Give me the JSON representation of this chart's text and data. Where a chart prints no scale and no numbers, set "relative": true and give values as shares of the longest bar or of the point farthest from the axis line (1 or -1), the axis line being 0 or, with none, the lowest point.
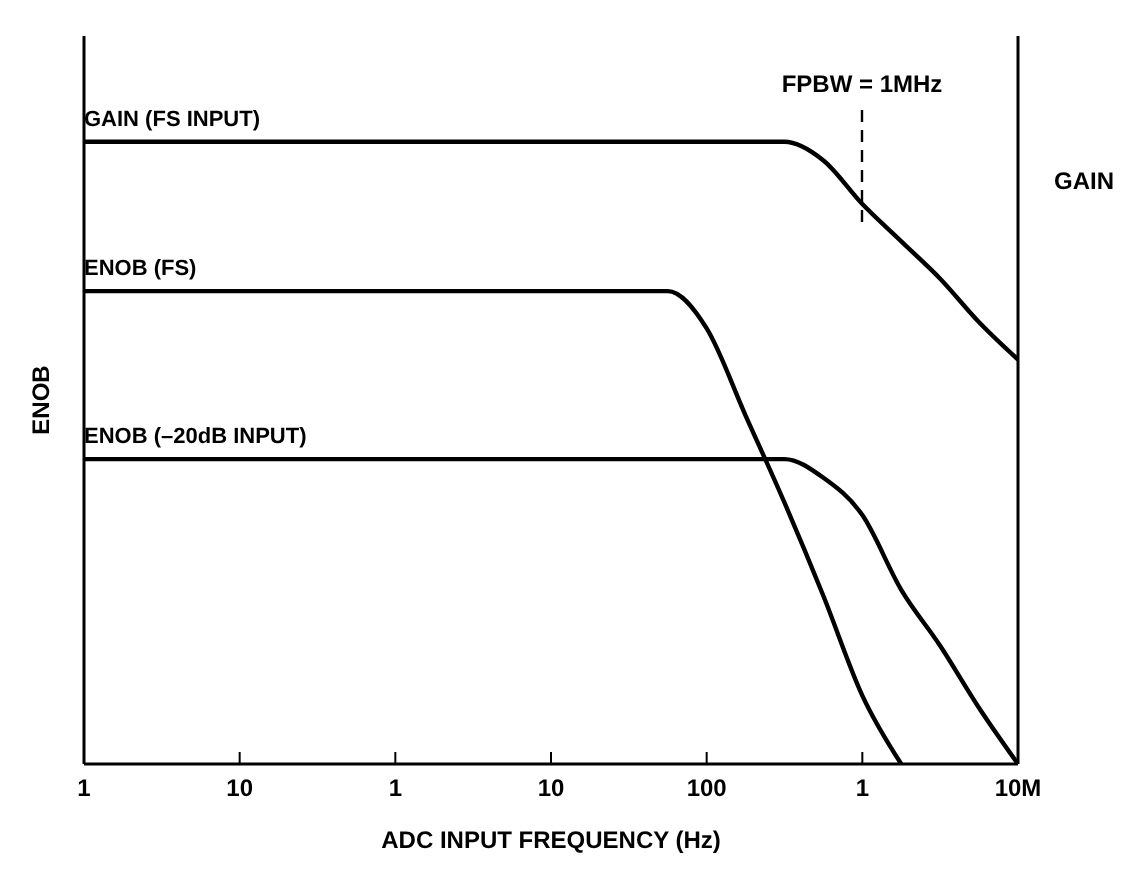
{
  "chart_data": {
    "type": "line",
    "relative": true,
    "xlabel": "ADC INPUT FREQUENCY (Hz)",
    "ylabel": "ENOB",
    "y2label": "GAIN",
    "categories": [
      "1",
      null,
      null,
      null,
      "10",
      null,
      null,
      null,
      "1",
      null,
      null,
      null,
      "10",
      null,
      null,
      null,
      "100",
      null,
      null,
      null,
      "1",
      null,
      null,
      null,
      "10M"
    ],
    "marker": "none",
    "line_style": "solid",
    "series": [
      {
        "name": "GAIN (FS INPUT)",
        "color": "#000000",
        "values": [
          1,
          1,
          1,
          1,
          1,
          1,
          1,
          1,
          1,
          1,
          1,
          1,
          1,
          1,
          1,
          1,
          1,
          1,
          1,
          0.97,
          0.9,
          0.84,
          0.78,
          0.71,
          0.65
        ]
      },
      {
        "name": "ENOB (FS)",
        "color": "#000000",
        "values": [
          0.76,
          0.76,
          0.76,
          0.76,
          0.76,
          0.76,
          0.76,
          0.76,
          0.76,
          0.76,
          0.76,
          0.76,
          0.76,
          0.76,
          0.76,
          0.76,
          0.7,
          0.56,
          0.42,
          0.27,
          0.11,
          0,
          null,
          null,
          null
        ]
      },
      {
        "name": "ENOB (–20dB INPUT)",
        "color": "#000000",
        "values": [
          0.49,
          0.49,
          0.49,
          0.49,
          0.49,
          0.49,
          0.49,
          0.49,
          0.49,
          0.49,
          0.49,
          0.49,
          0.49,
          0.49,
          0.49,
          0.49,
          0.49,
          0.49,
          0.49,
          0.46,
          0.4,
          0.28,
          0.19,
          0.09,
          0
        ]
      }
    ],
    "annotations": [
      "FPBW = 1MHz"
    ]
  }
}
